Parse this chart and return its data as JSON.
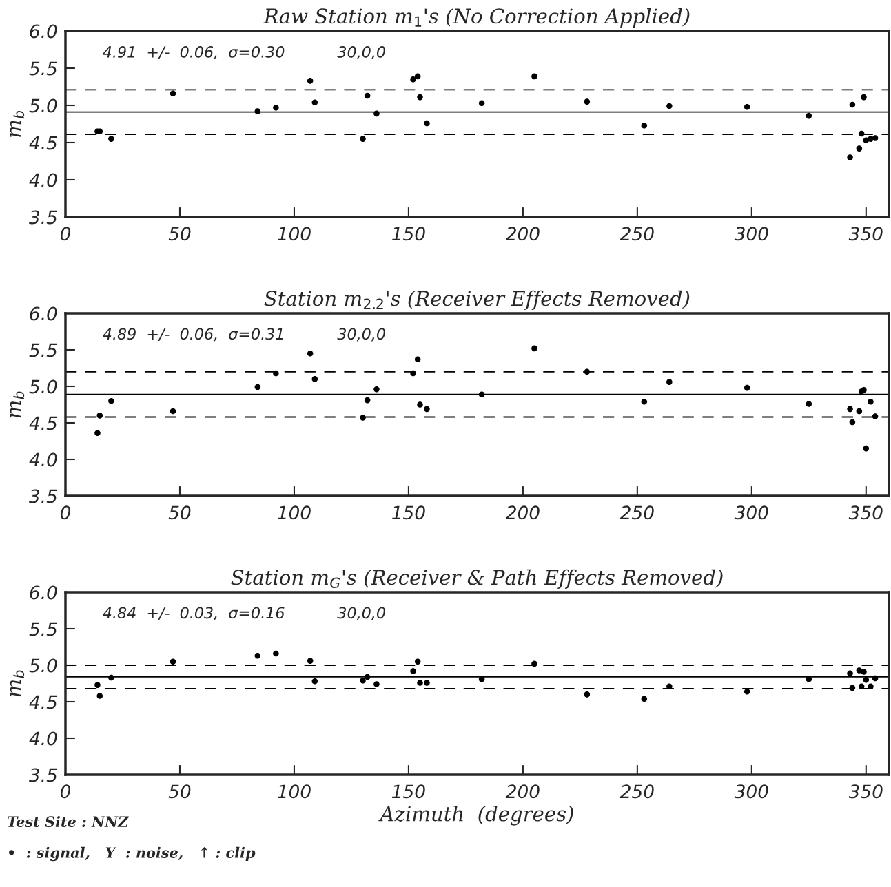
{
  "chart_data": [
    {
      "type": "scatter",
      "title": "Raw Station m$_{1}$'s (No Correction Applied)",
      "ylabel": "m$_{b}$",
      "x": [
        14,
        15,
        20,
        47,
        84,
        92,
        107,
        109,
        130,
        132,
        136,
        152,
        154,
        155,
        158,
        182,
        205,
        228,
        253,
        264,
        298,
        325,
        343,
        344,
        347,
        348,
        349,
        350,
        352,
        354
      ],
      "series": [
        {
          "color": "#000000",
          "values": [
            4.65,
            4.65,
            4.55,
            5.16,
            4.92,
            4.97,
            5.33,
            5.04,
            4.55,
            5.13,
            4.89,
            5.35,
            5.39,
            5.11,
            4.76,
            5.03,
            5.39,
            5.05,
            4.73,
            4.99,
            4.98,
            4.86,
            4.3,
            5.01,
            4.42,
            4.62,
            5.11,
            4.53,
            4.55,
            4.56
          ]
        }
      ],
      "marker": "circle",
      "grid": false,
      "xlim": [
        0,
        360
      ],
      "xticks": [
        0,
        50,
        100,
        150,
        200,
        250,
        300,
        350
      ],
      "ylim": [
        3.5,
        6.0
      ],
      "yticks": [
        3.5,
        {
          "value": 4,
          "label": "4.0"
        },
        4.5,
        {
          "value": 5,
          "label": "5.0"
        },
        5.5,
        {
          "value": 6,
          "label": "6.0"
        }
      ],
      "ref_lines": [
        {
          "axis": "y",
          "value": 4.91,
          "label": null,
          "color": "#000000",
          "line_style": "solid"
        },
        {
          "axis": "y",
          "value": 5.21,
          "label": null,
          "color": "#000000",
          "line_style": "dashed"
        },
        {
          "axis": "y",
          "value": 4.61,
          "label": null,
          "color": "#000000",
          "line_style": "dashed"
        }
      ],
      "annotations": [
        "4.91  +/-  0.06,  σ=0.30",
        "30,0,0"
      ]
    },
    {
      "type": "scatter",
      "title": "Station m$_{2.2}$'s (Receiver Effects Removed)",
      "ylabel": "m$_{b}$",
      "x": [
        14,
        15,
        20,
        47,
        84,
        92,
        107,
        109,
        130,
        132,
        136,
        152,
        154,
        155,
        158,
        182,
        205,
        228,
        253,
        264,
        298,
        325,
        343,
        344,
        347,
        348,
        349,
        350,
        352,
        354
      ],
      "series": [
        {
          "color": "#000000",
          "values": [
            4.36,
            4.6,
            4.8,
            4.66,
            4.99,
            5.18,
            5.45,
            5.1,
            4.57,
            4.81,
            4.96,
            5.18,
            5.37,
            4.75,
            4.69,
            4.89,
            5.52,
            5.2,
            4.79,
            5.06,
            4.98,
            4.76,
            4.69,
            4.51,
            4.66,
            4.93,
            4.95,
            4.15,
            4.79,
            4.59
          ]
        }
      ],
      "marker": "circle",
      "grid": false,
      "xlim": [
        0,
        360
      ],
      "xticks": [
        0,
        50,
        100,
        150,
        200,
        250,
        300,
        350
      ],
      "ylim": [
        3.5,
        6.0
      ],
      "yticks": [
        3.5,
        {
          "value": 4,
          "label": "4.0"
        },
        4.5,
        {
          "value": 5,
          "label": "5.0"
        },
        5.5,
        {
          "value": 6,
          "label": "6.0"
        }
      ],
      "ref_lines": [
        {
          "axis": "y",
          "value": 4.89,
          "label": null,
          "color": "#000000",
          "line_style": "solid"
        },
        {
          "axis": "y",
          "value": 5.2,
          "label": null,
          "color": "#000000",
          "line_style": "dashed"
        },
        {
          "axis": "y",
          "value": 4.58,
          "label": null,
          "color": "#000000",
          "line_style": "dashed"
        }
      ],
      "annotations": [
        "4.89  +/-  0.06,  σ=0.31",
        "30,0,0"
      ]
    },
    {
      "type": "scatter",
      "title": "Station m$_{G}$'s (Receiver & Path Effects Removed)",
      "ylabel": "m$_{b}$",
      "xlabel": "Azimuth  (degrees)",
      "x": [
        14,
        15,
        20,
        47,
        84,
        92,
        107,
        109,
        130,
        132,
        136,
        152,
        154,
        155,
        158,
        182,
        205,
        228,
        253,
        264,
        298,
        325,
        343,
        344,
        347,
        348,
        349,
        350,
        352,
        354
      ],
      "series": [
        {
          "color": "#000000",
          "values": [
            4.73,
            4.58,
            4.83,
            5.05,
            5.13,
            5.16,
            5.06,
            4.78,
            4.79,
            4.84,
            4.74,
            4.92,
            5.05,
            4.76,
            4.76,
            4.81,
            5.02,
            4.6,
            4.54,
            4.71,
            4.64,
            4.81,
            4.89,
            4.69,
            4.93,
            4.71,
            4.91,
            4.8,
            4.71,
            4.82
          ]
        }
      ],
      "marker": "circle",
      "grid": false,
      "xlim": [
        0,
        360
      ],
      "xticks": [
        0,
        50,
        100,
        150,
        200,
        250,
        300,
        350
      ],
      "ylim": [
        3.5,
        6.0
      ],
      "yticks": [
        3.5,
        {
          "value": 4,
          "label": "4.0"
        },
        4.5,
        {
          "value": 5,
          "label": "5.0"
        },
        5.5,
        {
          "value": 6,
          "label": "6.0"
        }
      ],
      "ref_lines": [
        {
          "axis": "y",
          "value": 4.84,
          "label": null,
          "color": "#000000",
          "line_style": "solid"
        },
        {
          "axis": "y",
          "value": 5.0,
          "label": null,
          "color": "#000000",
          "line_style": "dashed"
        },
        {
          "axis": "y",
          "value": 4.68,
          "label": null,
          "color": "#000000",
          "line_style": "dashed"
        }
      ],
      "annotations": [
        "4.84  +/-  0.03,  σ=0.16",
        "30,0,0",
        "Test Site : NNZ",
        "•  : signal,   Y  : noise,   ↑ : clip"
      ]
    }
  ]
}
